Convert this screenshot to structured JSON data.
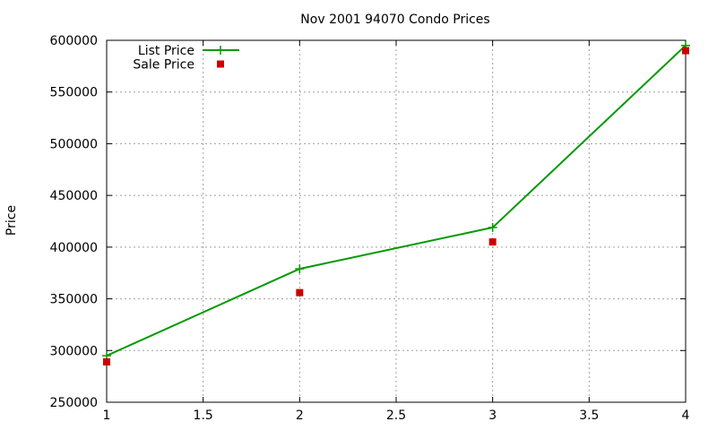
{
  "chart_data": {
    "type": "line",
    "title": "Nov 2001 94070 Condo Prices",
    "xlabel": "",
    "ylabel": "Price",
    "xlim": [
      1,
      4
    ],
    "ylim": [
      250000,
      600000
    ],
    "x_ticks": [
      "1",
      "1.5",
      "2",
      "2.5",
      "3",
      "3.5",
      "4"
    ],
    "y_ticks": [
      "250000",
      "300000",
      "350000",
      "400000",
      "450000",
      "500000",
      "550000",
      "600000"
    ],
    "grid": true,
    "legend_position": "top-left",
    "series": [
      {
        "name": "List Price",
        "style": "linespoints",
        "marker": "plus",
        "color": "#009900",
        "x": [
          1,
          2,
          3,
          4
        ],
        "y": [
          295000,
          379000,
          419000,
          595000
        ]
      },
      {
        "name": "Sale Price",
        "style": "points",
        "marker": "square",
        "color": "#cc0000",
        "x": [
          1,
          2,
          3,
          4
        ],
        "y": [
          289000,
          356000,
          405000,
          590000
        ]
      }
    ]
  }
}
